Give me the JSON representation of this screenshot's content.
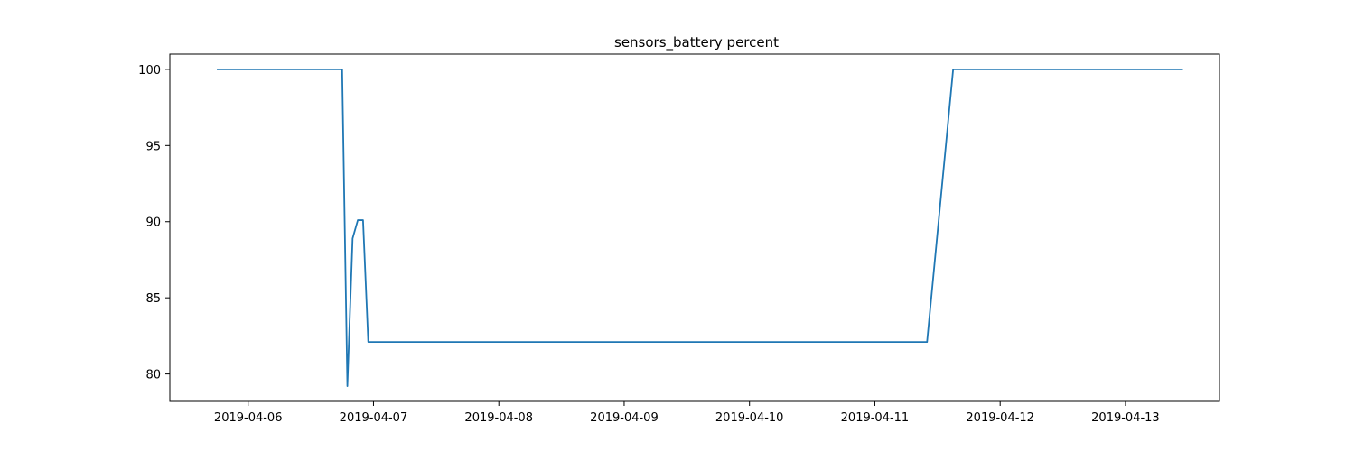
{
  "chart_data": {
    "type": "line",
    "title": "sensors_battery percent",
    "xlabel": "",
    "ylabel": "",
    "x_ticks": [
      "2019-04-06",
      "2019-04-07",
      "2019-04-08",
      "2019-04-09",
      "2019-04-10",
      "2019-04-11",
      "2019-04-12",
      "2019-04-13"
    ],
    "y_ticks": [
      80,
      85,
      90,
      95,
      100
    ],
    "xlim": [
      "2019-04-05 09:00",
      "2019-04-13 18:00"
    ],
    "ylim": [
      78.2,
      101.0
    ],
    "grid": false,
    "legend": "none",
    "series": [
      {
        "color": "#1f77b4",
        "points": [
          {
            "x": "2019-04-05 18:00",
            "y": 100
          },
          {
            "x": "2019-04-06 18:00",
            "y": 100
          },
          {
            "x": "2019-04-06 19:00",
            "y": 79.2
          },
          {
            "x": "2019-04-06 20:00",
            "y": 88.9
          },
          {
            "x": "2019-04-06 21:00",
            "y": 90.1
          },
          {
            "x": "2019-04-06 22:00",
            "y": 90.1
          },
          {
            "x": "2019-04-06 23:00",
            "y": 82.1
          },
          {
            "x": "2019-04-11 10:00",
            "y": 82.1
          },
          {
            "x": "2019-04-11 15:00",
            "y": 100
          },
          {
            "x": "2019-04-13 11:00",
            "y": 100
          }
        ]
      }
    ]
  }
}
